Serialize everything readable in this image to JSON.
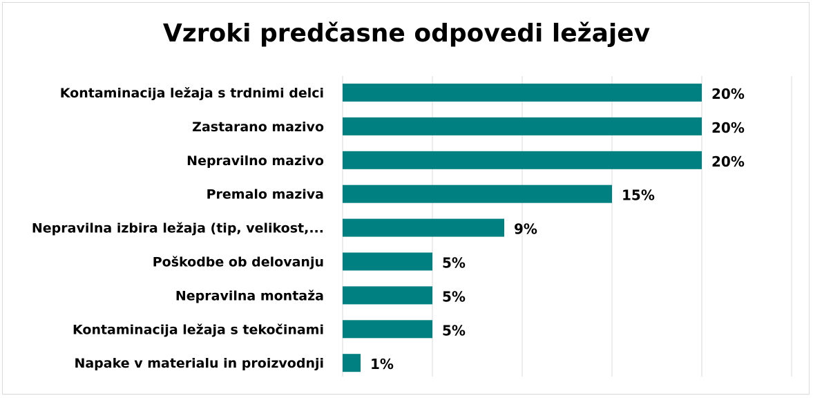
{
  "chart_data": {
    "type": "bar",
    "orientation": "horizontal",
    "title": "Vzroki predčasne odpovedi ležajev",
    "categories": [
      "Kontaminacija ležaja s trdnimi delci",
      "Zastarano mazivo",
      "Nepravilno mazivo",
      "Premalo maziva",
      "Nepravilna izbira ležaja (tip, velikost,...",
      "Poškodbe ob delovanju",
      "Nepravilna montaža",
      "Kontaminacija ležaja s tekočinami",
      "Napake v materialu in proizvodnji"
    ],
    "values": [
      20,
      20,
      20,
      15,
      9,
      5,
      5,
      5,
      1
    ],
    "value_labels": [
      "20%",
      "20%",
      "20%",
      "15%",
      "9%",
      "5%",
      "5%",
      "5%",
      "1%"
    ],
    "xlim": [
      0,
      25
    ],
    "grid": "vertical",
    "bar_color": "#008080",
    "grid_color": "#d9d9d9",
    "xlabel": "",
    "ylabel": ""
  }
}
